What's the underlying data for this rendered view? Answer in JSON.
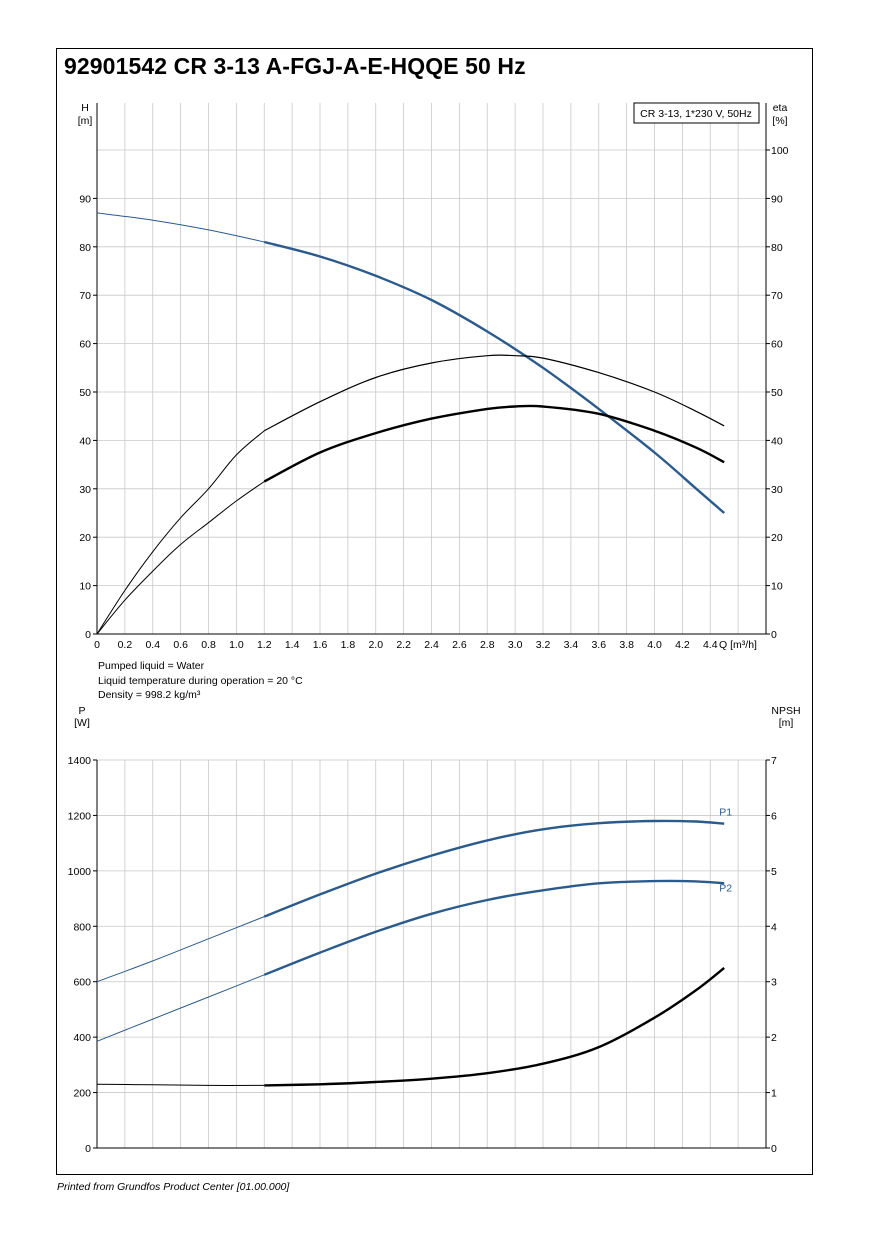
{
  "page": {
    "title": "92901542 CR 3-13 A-FGJ-A-E-HQQE 50 Hz",
    "footer": "Printed from Grundfos Product Center [01.00.000]"
  },
  "liquid_info": {
    "line1": "Pumped liquid = Water",
    "line2": "Liquid temperature during operation = 20 °C",
    "line3": "Density = 998.2 kg/m³"
  },
  "colors": {
    "blue": "#2b5a8c",
    "black": "#000000",
    "grid": "#c8c8c8"
  },
  "chart_data": [
    {
      "type": "line",
      "legend_box": "CR 3-13, 1*230 V, 50Hz",
      "x_label": "Q [m³/h]",
      "y_left_label": [
        "H",
        "[m]"
      ],
      "y_right_label": [
        "eta",
        "[%]"
      ],
      "xlim": [
        0,
        4.8
      ],
      "ylim_left": [
        0,
        100
      ],
      "ylim_right": [
        0,
        100
      ],
      "x_ticks": [
        "0",
        "0.2",
        "0.4",
        "0.6",
        "0.8",
        "1.0",
        "1.2",
        "1.4",
        "1.6",
        "1.8",
        "2.0",
        "2.2",
        "2.4",
        "2.6",
        "2.8",
        "3.0",
        "3.2",
        "3.4",
        "3.6",
        "3.8",
        "4.0",
        "4.2",
        "4.4"
      ],
      "y_left_ticks": [
        "0",
        "10",
        "20",
        "30",
        "40",
        "50",
        "60",
        "70",
        "80",
        "90"
      ],
      "y_right_ticks": [
        "0",
        "10",
        "20",
        "30",
        "40",
        "50",
        "60",
        "70",
        "80",
        "90",
        "100"
      ],
      "grid": true,
      "series": [
        {
          "name": "H",
          "color": "#2b5a8c",
          "axis": "left",
          "q_start_bold": 1.2,
          "x": [
            0,
            0.4,
            0.8,
            1.2,
            1.6,
            2.0,
            2.4,
            2.8,
            3.2,
            3.6,
            4.0,
            4.3,
            4.5
          ],
          "y": [
            87.0,
            85.5,
            83.5,
            81.0,
            78.0,
            74.0,
            69.0,
            62.5,
            55.0,
            46.5,
            37.5,
            30.0,
            25.0
          ]
        },
        {
          "color": "#000000",
          "axis": "right",
          "q_start_bold": 1.2,
          "x": [
            0,
            0.2,
            0.4,
            0.6,
            0.8,
            1.0,
            1.2,
            1.6,
            2.0,
            2.4,
            2.8,
            3.0,
            3.2,
            3.6,
            4.0,
            4.3,
            4.5
          ],
          "y": [
            0,
            9,
            17,
            24,
            30,
            37,
            42,
            48,
            53,
            56,
            57.5,
            57.5,
            57,
            54,
            50,
            46,
            43
          ]
        },
        {
          "color": "#000000",
          "axis": "right",
          "q_start_bold": 1.2,
          "x": [
            0,
            0.2,
            0.4,
            0.6,
            0.8,
            1.0,
            1.2,
            1.6,
            2.0,
            2.4,
            2.8,
            3.0,
            3.2,
            3.6,
            4.0,
            4.3,
            4.5
          ],
          "y": [
            0,
            7,
            13,
            18.5,
            23,
            27.5,
            31.5,
            37.5,
            41.5,
            44.5,
            46.5,
            47,
            47,
            45.5,
            42,
            38.5,
            35.5
          ]
        }
      ]
    },
    {
      "type": "line",
      "x_label": "",
      "y_left_label": [
        "P",
        "[W]"
      ],
      "y_right_label": [
        "NPSH",
        "[m]"
      ],
      "xlim": [
        0,
        4.8
      ],
      "ylim_left": [
        0,
        1400
      ],
      "ylim_right": [
        0,
        7
      ],
      "y_left_ticks": [
        "0",
        "200",
        "400",
        "600",
        "800",
        "1000",
        "1200",
        "1400"
      ],
      "y_right_ticks": [
        "0",
        "1",
        "2",
        "3",
        "4",
        "5",
        "6",
        "7"
      ],
      "grid": true,
      "series": [
        {
          "name": "P1",
          "color": "#2b5a8c",
          "axis": "left",
          "q_start_bold": 1.2,
          "x": [
            0,
            0.4,
            0.8,
            1.2,
            1.6,
            2.0,
            2.4,
            2.8,
            3.2,
            3.6,
            4.0,
            4.3,
            4.5
          ],
          "y": [
            600,
            675,
            755,
            835,
            915,
            990,
            1055,
            1110,
            1150,
            1172,
            1180,
            1178,
            1170
          ]
        },
        {
          "name": "P2",
          "color": "#2b5a8c",
          "axis": "left",
          "q_start_bold": 1.2,
          "x": [
            0,
            0.4,
            0.8,
            1.2,
            1.6,
            2.0,
            2.4,
            2.8,
            3.2,
            3.6,
            4.0,
            4.3,
            4.5
          ],
          "y": [
            385,
            465,
            545,
            625,
            705,
            780,
            845,
            895,
            930,
            955,
            963,
            962,
            955
          ]
        },
        {
          "color": "#000000",
          "axis": "right",
          "q_start_bold": 1.2,
          "x": [
            0,
            0.4,
            0.8,
            1.2,
            1.6,
            2.0,
            2.4,
            2.8,
            3.2,
            3.6,
            4.0,
            4.3,
            4.5
          ],
          "y": [
            1.15,
            1.14,
            1.13,
            1.13,
            1.15,
            1.19,
            1.25,
            1.35,
            1.52,
            1.82,
            2.35,
            2.85,
            3.25
          ]
        }
      ]
    }
  ]
}
